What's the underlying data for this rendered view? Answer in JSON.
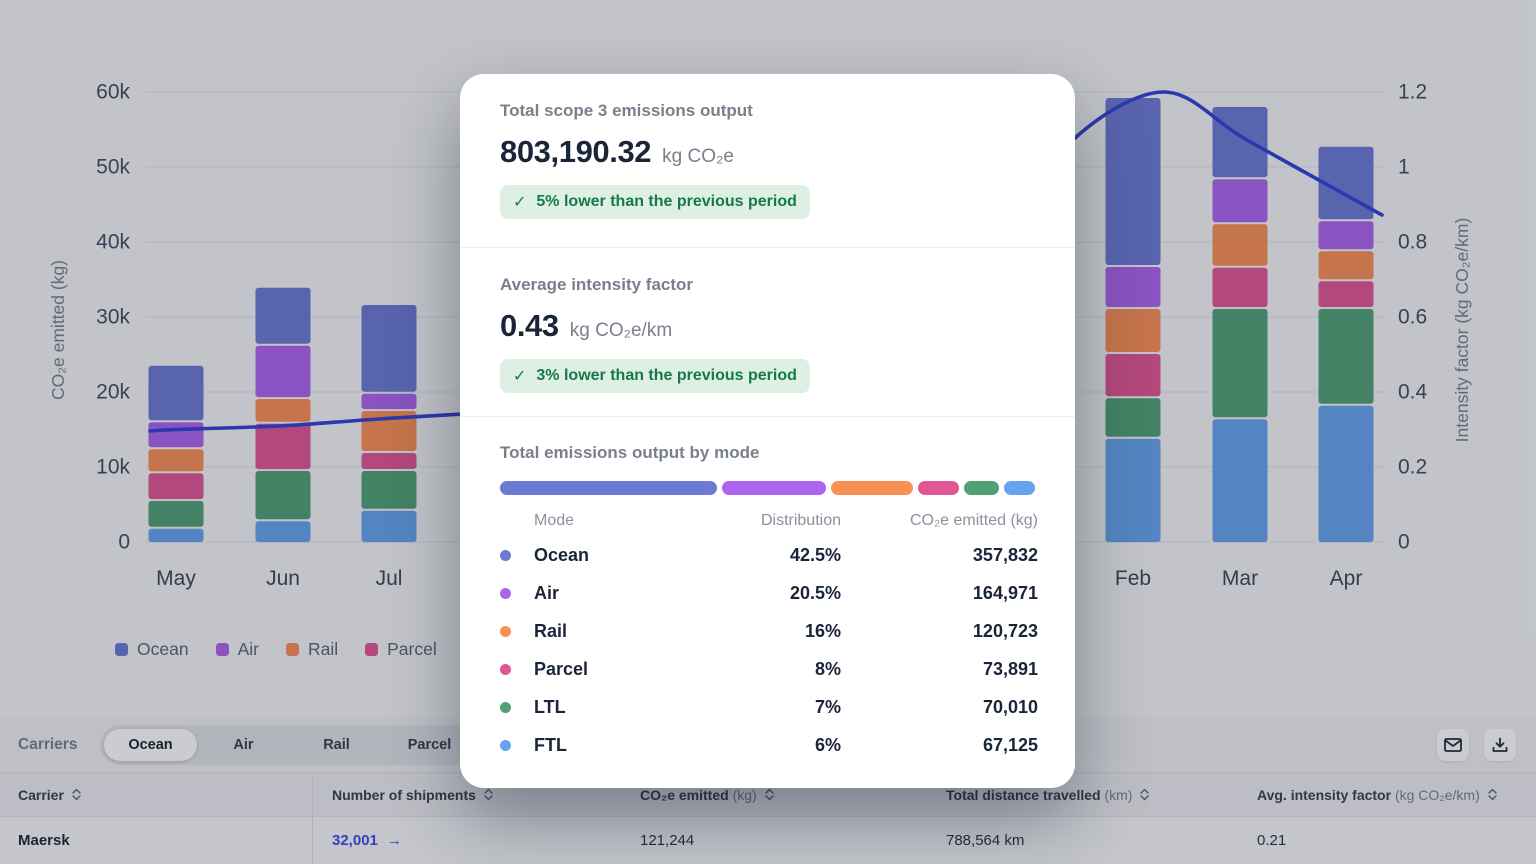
{
  "colors": {
    "ocean": "#6C7AD4",
    "air": "#AC64EC",
    "rail": "#F88F55",
    "parcel": "#DF5794",
    "ltl": "#51A075",
    "ftl": "#67A4EE",
    "line": "#3442D4",
    "badge_bg": "#DEF0E4",
    "badge_text": "#17794A",
    "link": "#3D4EEB"
  },
  "modal": {
    "sections": [
      {
        "title": "Total scope 3 emissions output",
        "value": "803,190.32",
        "unit": "kg CO₂e",
        "check": "✓",
        "badge": "5% lower than the previous period"
      },
      {
        "title": "Average intensity factor",
        "value": "0.43",
        "unit": "kg CO₂e/km",
        "check": "✓",
        "badge": "3% lower than the previous period"
      }
    ],
    "modes": {
      "title": "Total emissions output by mode",
      "headers": [
        "Mode",
        "Distribution",
        "CO₂e emitted (kg)"
      ],
      "rows": [
        {
          "mode": "Ocean",
          "color_key": "ocean",
          "distribution": "42.5%",
          "pct": 42.5,
          "emitted": "357,832"
        },
        {
          "mode": "Air",
          "color_key": "air",
          "distribution": "20.5%",
          "pct": 20.5,
          "emitted": "164,971"
        },
        {
          "mode": "Rail",
          "color_key": "rail",
          "distribution": "16%",
          "pct": 16,
          "emitted": "120,723"
        },
        {
          "mode": "Parcel",
          "color_key": "parcel",
          "distribution": "8%",
          "pct": 8,
          "emitted": "73,891"
        },
        {
          "mode": "LTL",
          "color_key": "ltl",
          "distribution": "7%",
          "pct": 7,
          "emitted": "70,010"
        },
        {
          "mode": "FTL",
          "color_key": "ftl",
          "distribution": "6%",
          "pct": 6,
          "emitted": "67,125"
        }
      ]
    }
  },
  "chart_data": [
    {
      "type": "bar",
      "subtype": "stacked-with-line",
      "categories": [
        "May",
        "Jun",
        "Jul"
      ],
      "series": [
        {
          "name": "FTL",
          "color_key": "ftl",
          "values": [
            1900,
            2900,
            4300
          ]
        },
        {
          "name": "LTL",
          "color_key": "ltl",
          "values": [
            3700,
            6700,
            5300
          ]
        },
        {
          "name": "Parcel",
          "color_key": "parcel",
          "values": [
            3700,
            6300,
            2400
          ]
        },
        {
          "name": "Rail",
          "color_key": "rail",
          "values": [
            3200,
            3300,
            5600
          ]
        },
        {
          "name": "Air",
          "color_key": "air",
          "values": [
            3600,
            7100,
            2300
          ]
        },
        {
          "name": "Ocean",
          "color_key": "ocean",
          "values": [
            7400,
            7600,
            11700
          ]
        }
      ],
      "line_series": {
        "name": "Intensity factor",
        "axis": "right",
        "values": [
          0.3,
          0.31,
          0.33
        ]
      },
      "ylabel": "CO₂e emitted (kg)",
      "yticks": [
        "0",
        "10k",
        "20k",
        "30k",
        "40k",
        "50k",
        "60k"
      ],
      "ylim": [
        0,
        60000
      ],
      "grid": true,
      "legend": [
        "Ocean",
        "Air",
        "Rail",
        "Parcel"
      ],
      "legend_position": "bottom"
    },
    {
      "type": "bar",
      "subtype": "stacked-with-line",
      "categories": [
        "Feb",
        "Mar",
        "Apr"
      ],
      "series": [
        {
          "name": "FTL",
          "color_key": "ftl",
          "values": [
            13900,
            16500,
            18300
          ]
        },
        {
          "name": "LTL",
          "color_key": "ltl",
          "values": [
            5400,
            14700,
            12900
          ]
        },
        {
          "name": "Parcel",
          "color_key": "parcel",
          "values": [
            5900,
            5500,
            3700
          ]
        },
        {
          "name": "Rail",
          "color_key": "rail",
          "values": [
            6000,
            5800,
            4000
          ]
        },
        {
          "name": "Air",
          "color_key": "air",
          "values": [
            5600,
            6000,
            4000
          ]
        },
        {
          "name": "Ocean",
          "color_key": "ocean",
          "values": [
            22400,
            9500,
            9800
          ]
        }
      ],
      "line_series": {
        "name": "Intensity factor",
        "axis": "right",
        "values": [
          1.19,
          1.07,
          0.91
        ]
      },
      "y2label": "Intensity factor (kg CO₂e/km)",
      "y2ticks": [
        "0",
        "0.2",
        "0.4",
        "0.6",
        "0.8",
        "1",
        "1.2"
      ],
      "y2lim": [
        0,
        1.2
      ],
      "ylim": [
        0,
        60000
      ],
      "grid": true
    }
  ],
  "toolbar": {
    "label": "Carriers",
    "tabs": [
      {
        "label": "Ocean",
        "selected": true
      },
      {
        "label": "Air",
        "selected": false
      },
      {
        "label": "Rail",
        "selected": false
      },
      {
        "label": "Parcel",
        "selected": false
      }
    ]
  },
  "carriers_table": {
    "columns": [
      {
        "label": "Carrier",
        "sub": ""
      },
      {
        "label": "Number of shipments",
        "sub": ""
      },
      {
        "label": "CO₂e emitted",
        "sub": "(kg)"
      },
      {
        "label": "Total distance travelled",
        "sub": "(km)"
      },
      {
        "label": "Avg. intensity factor",
        "sub": "(kg CO₂e/km)"
      }
    ],
    "rows": [
      {
        "carrier": "Maersk",
        "shipments": "32,001",
        "arrow": "→",
        "emitted": "121,244",
        "distance": "788,564 km",
        "intensity": "0.21"
      }
    ]
  }
}
